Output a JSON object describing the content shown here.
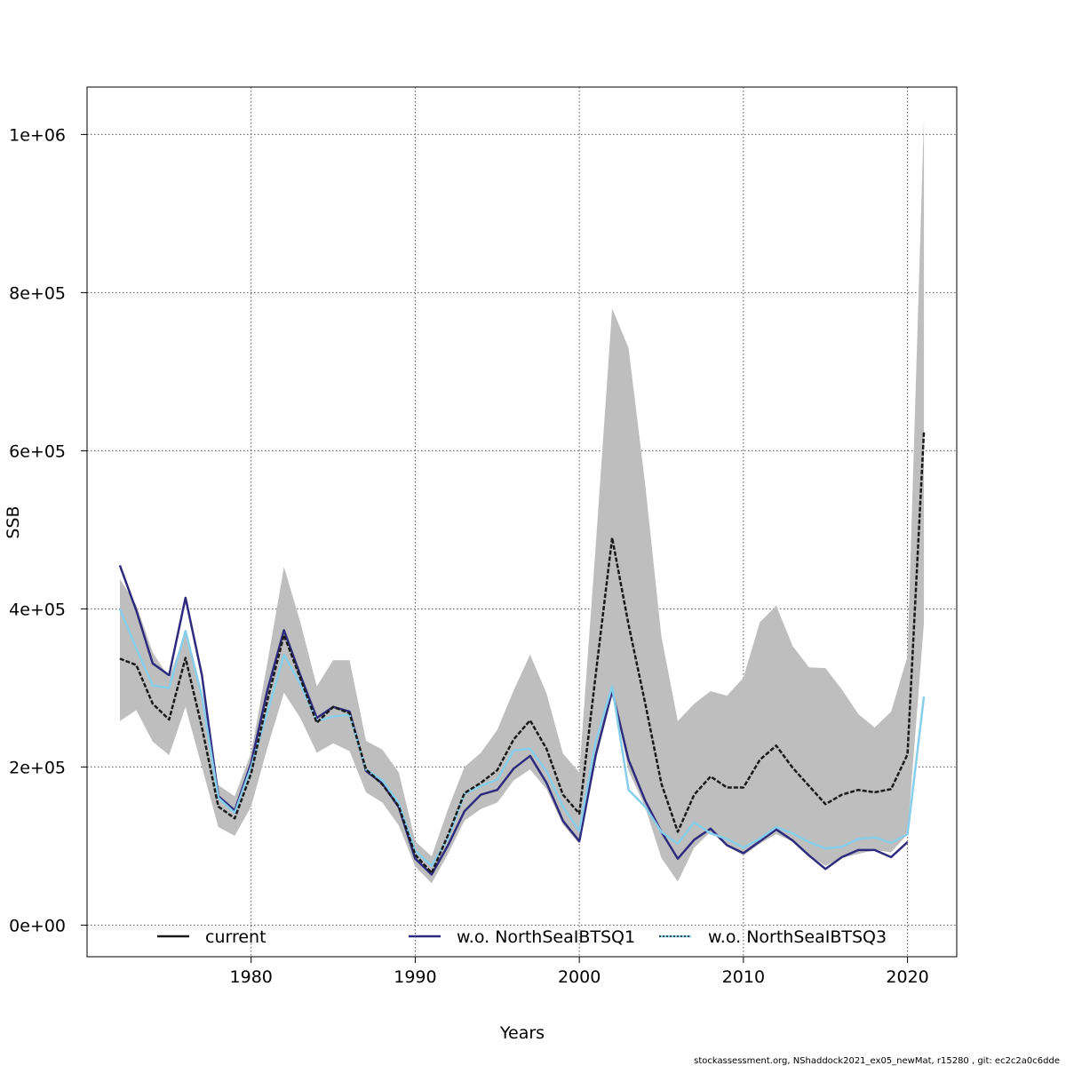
{
  "chart_data": {
    "type": "line",
    "title": "",
    "xlabel": "Years",
    "ylabel": "SSB",
    "xlim": [
      1970,
      2023
    ],
    "ylim": [
      -40000,
      1060000
    ],
    "x_ticks": [
      1980,
      1990,
      2000,
      2010,
      2020
    ],
    "x_tick_labels": [
      "1980",
      "1990",
      "2000",
      "2010",
      "2020"
    ],
    "y_ticks": [
      0,
      200000,
      400000,
      600000,
      800000,
      1000000
    ],
    "y_tick_labels": [
      "0e+00",
      "2e+05",
      "4e+05",
      "6e+05",
      "8e+05",
      "1e+06"
    ],
    "grid": true,
    "legend_position": "bottom",
    "band": {
      "x": [
        1972,
        1973,
        1974,
        1975,
        1976,
        1977,
        1978,
        1979,
        1980,
        1981,
        1982,
        1983,
        1984,
        1985,
        1986,
        1987,
        1988,
        1989,
        1990,
        1991,
        1992,
        1993,
        1994,
        1995,
        1996,
        1997,
        1998,
        1999,
        2000,
        2001,
        2002,
        2003,
        2004,
        2005,
        2006,
        2007,
        2008,
        2009,
        2010,
        2011,
        2012,
        2013,
        2014,
        2015,
        2016,
        2017,
        2018,
        2019,
        2020,
        2021
      ],
      "lower": [
        258000,
        272000,
        232000,
        215000,
        276000,
        200000,
        124000,
        113000,
        150000,
        225000,
        294000,
        262000,
        218000,
        230000,
        220000,
        168000,
        155000,
        126000,
        74000,
        53000,
        90000,
        132000,
        147000,
        155000,
        183000,
        197000,
        172000,
        127000,
        103000,
        208000,
        300000,
        195000,
        150000,
        85000,
        55000,
        98000,
        118000,
        100000,
        88000,
        103000,
        115000,
        106000,
        88000,
        75000,
        85000,
        90000,
        95000,
        92000,
        115000,
        382000
      ],
      "upper": [
        438000,
        405000,
        345000,
        313000,
        370000,
        295000,
        177000,
        163000,
        218000,
        333000,
        453000,
        383000,
        302000,
        335000,
        335000,
        233000,
        222000,
        193000,
        106000,
        87000,
        147000,
        200000,
        218000,
        247000,
        297000,
        342000,
        293000,
        217000,
        193000,
        480000,
        780000,
        730000,
        560000,
        365000,
        258000,
        280000,
        296000,
        290000,
        313000,
        383000,
        404000,
        353000,
        326000,
        325000,
        298000,
        267000,
        250000,
        270000,
        340000,
        1020000
      ]
    },
    "series": [
      {
        "name": "current",
        "color": "#1a1a1a",
        "style": "dashed",
        "x": [
          1972,
          1973,
          1974,
          1975,
          1976,
          1977,
          1978,
          1979,
          1980,
          1981,
          1982,
          1983,
          1984,
          1985,
          1986,
          1987,
          1988,
          1989,
          1990,
          1991,
          1992,
          1993,
          1994,
          1995,
          1996,
          1997,
          1998,
          1999,
          2000,
          2001,
          2002,
          2003,
          2004,
          2005,
          2006,
          2007,
          2008,
          2009,
          2010,
          2011,
          2012,
          2013,
          2014,
          2015,
          2016,
          2017,
          2018,
          2019,
          2020,
          2021
        ],
        "values": [
          337000,
          329000,
          280000,
          260000,
          338000,
          250000,
          150000,
          135000,
          192000,
          285000,
          367000,
          312000,
          256000,
          276000,
          268000,
          197000,
          178000,
          150000,
          89000,
          66000,
          114000,
          167000,
          180000,
          196000,
          235000,
          259000,
          223000,
          165000,
          141000,
          317000,
          490000,
          380000,
          282000,
          179000,
          118000,
          165000,
          188000,
          174000,
          174000,
          209000,
          227000,
          199000,
          176000,
          153000,
          165000,
          171000,
          168000,
          172000,
          216000,
          624000
        ]
      },
      {
        "name": "w.o. NorthSeaIBTSQ1",
        "color": "#2e2a7e",
        "style": "solid",
        "x": [
          1972,
          1973,
          1974,
          1975,
          1976,
          1977,
          1978,
          1979,
          1980,
          1981,
          1982,
          1983,
          1984,
          1985,
          1986,
          1987,
          1988,
          1989,
          1990,
          1991,
          1992,
          1993,
          1994,
          1995,
          1996,
          1997,
          1998,
          1999,
          2000,
          2001,
          2002,
          2003,
          2004,
          2005,
          2006,
          2007,
          2008,
          2009,
          2010,
          2011,
          2012,
          2013,
          2014,
          2015,
          2016,
          2017,
          2018,
          2019,
          2020
        ],
        "values": [
          455000,
          398000,
          331000,
          316000,
          414000,
          316000,
          163000,
          145000,
          205000,
          298000,
          373000,
          316000,
          262000,
          276000,
          270000,
          195000,
          179000,
          149000,
          84000,
          64000,
          101000,
          144000,
          165000,
          171000,
          198000,
          214000,
          180000,
          132000,
          106000,
          215000,
          296000,
          209000,
          158000,
          118000,
          84000,
          108000,
          122000,
          101000,
          91000,
          106000,
          121000,
          107000,
          88000,
          71000,
          86000,
          95000,
          95000,
          86000,
          105000
        ]
      },
      {
        "name": "w.o. NorthSeaIBTSQ3",
        "color": "#87ceeb",
        "style": "solid",
        "x": [
          1972,
          1973,
          1974,
          1975,
          1976,
          1977,
          1978,
          1979,
          1980,
          1981,
          1982,
          1983,
          1984,
          1985,
          1986,
          1987,
          1988,
          1989,
          1990,
          1991,
          1992,
          1993,
          1994,
          1995,
          1996,
          1997,
          1998,
          1999,
          2000,
          2001,
          2002,
          2003,
          2004,
          2005,
          2006,
          2007,
          2008,
          2009,
          2010,
          2011,
          2012,
          2013,
          2014,
          2015,
          2016,
          2017,
          2018,
          2019,
          2020,
          2021
        ],
        "values": [
          400000,
          350000,
          303000,
          300000,
          372000,
          290000,
          161000,
          142000,
          200000,
          270000,
          342000,
          305000,
          258000,
          264000,
          266000,
          197000,
          183000,
          154000,
          94000,
          75000,
          110000,
          166000,
          176000,
          184000,
          221000,
          223000,
          195000,
          150000,
          119000,
          232000,
          302000,
          171000,
          150000,
          118000,
          103000,
          130000,
          116000,
          109000,
          98000,
          109000,
          124000,
          116000,
          105000,
          97000,
          99000,
          109000,
          111000,
          104000,
          115000,
          289000
        ]
      }
    ],
    "footer": "stockassessment.org, NShaddock2021_ex05_newMat, r15280 , git: ec2c2a0c6dde"
  }
}
